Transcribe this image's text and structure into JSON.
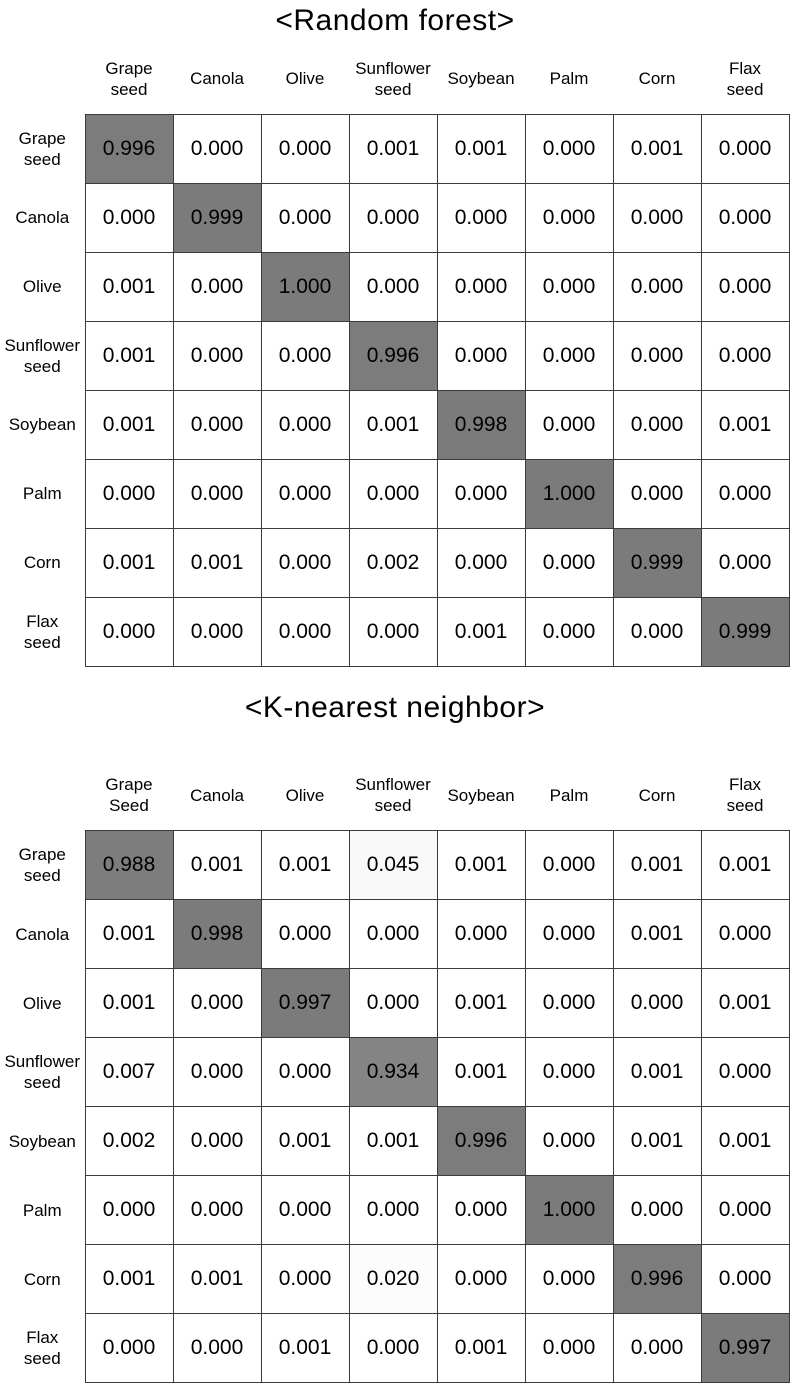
{
  "colors": {
    "background": "#ffffff",
    "grid_border": "#3a3a3a",
    "text": "#000000",
    "diagonal_fill": "#7b7b7b"
  },
  "chart_data": [
    {
      "type": "heatmap",
      "title": "<Random forest>",
      "col_labels": [
        "Grape\nseed",
        "Canola",
        "Olive",
        "Sunflower\nseed",
        "Soybean",
        "Palm",
        "Corn",
        "Flax\nseed"
      ],
      "row_labels": [
        "Grape\nseed",
        "Canola",
        "Olive",
        "Sunflower\nseed",
        "Soybean",
        "Palm",
        "Corn",
        "Flax\nseed"
      ],
      "values": [
        [
          0.996,
          0.0,
          0.0,
          0.001,
          0.001,
          0.0,
          0.001,
          0.0
        ],
        [
          0.0,
          0.999,
          0.0,
          0.0,
          0.0,
          0.0,
          0.0,
          0.0
        ],
        [
          0.001,
          0.0,
          1.0,
          0.0,
          0.0,
          0.0,
          0.0,
          0.0
        ],
        [
          0.001,
          0.0,
          0.0,
          0.996,
          0.0,
          0.0,
          0.0,
          0.0
        ],
        [
          0.001,
          0.0,
          0.0,
          0.001,
          0.998,
          0.0,
          0.0,
          0.001
        ],
        [
          0.0,
          0.0,
          0.0,
          0.0,
          0.0,
          1.0,
          0.0,
          0.0
        ],
        [
          0.001,
          0.001,
          0.0,
          0.002,
          0.0,
          0.0,
          0.999,
          0.0
        ],
        [
          0.0,
          0.0,
          0.0,
          0.0,
          0.001,
          0.0,
          0.0,
          0.999
        ]
      ],
      "value_decimals": 3,
      "colormap": {
        "low": "#ffffff",
        "high": "#7b7b7b",
        "domain": [
          0,
          1
        ]
      },
      "legend": "none",
      "grid": "on"
    },
    {
      "type": "heatmap",
      "title": "<K-nearest neighbor>",
      "col_labels": [
        "Grape\nSeed",
        "Canola",
        "Olive",
        "Sunflower\nseed",
        "Soybean",
        "Palm",
        "Corn",
        "Flax\nseed"
      ],
      "row_labels": [
        "Grape\nseed",
        "Canola",
        "Olive",
        "Sunflower\nseed",
        "Soybean",
        "Palm",
        "Corn",
        "Flax\nseed"
      ],
      "values": [
        [
          0.988,
          0.001,
          0.001,
          0.045,
          0.001,
          0.0,
          0.001,
          0.001
        ],
        [
          0.001,
          0.998,
          0.0,
          0.0,
          0.0,
          0.0,
          0.001,
          0.0
        ],
        [
          0.001,
          0.0,
          0.997,
          0.0,
          0.001,
          0.0,
          0.0,
          0.001
        ],
        [
          0.007,
          0.0,
          0.0,
          0.934,
          0.001,
          0.0,
          0.001,
          0.0
        ],
        [
          0.002,
          0.0,
          0.001,
          0.001,
          0.996,
          0.0,
          0.001,
          0.001
        ],
        [
          0.0,
          0.0,
          0.0,
          0.0,
          0.0,
          1.0,
          0.0,
          0.0
        ],
        [
          0.001,
          0.001,
          0.0,
          0.02,
          0.0,
          0.0,
          0.996,
          0.0
        ],
        [
          0.0,
          0.0,
          0.001,
          0.0,
          0.001,
          0.0,
          0.0,
          0.997
        ]
      ],
      "value_decimals": 3,
      "colormap": {
        "low": "#ffffff",
        "high": "#7b7b7b",
        "domain": [
          0,
          1
        ]
      },
      "legend": "none",
      "grid": "on"
    }
  ]
}
